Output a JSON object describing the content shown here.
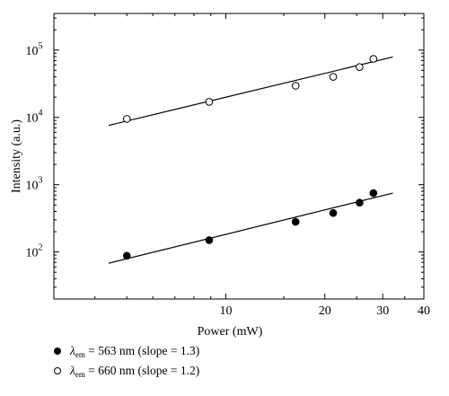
{
  "chart_data": {
    "type": "scatter",
    "xscale": "log",
    "yscale": "log",
    "xlim": [
      3.0,
      40
    ],
    "ylim": [
      20,
      350000
    ],
    "xlabel": "Power (mW)",
    "ylabel": "Intensity (a.u.)",
    "xticks": [
      {
        "value": 10,
        "label": "10"
      },
      {
        "value": 20,
        "label": "20"
      },
      {
        "value": 30,
        "label": "30"
      },
      {
        "value": 40,
        "label": "40"
      }
    ],
    "yticks": [
      {
        "value": 100,
        "base": "10",
        "exp": "2"
      },
      {
        "value": 1000,
        "base": "10",
        "exp": "3"
      },
      {
        "value": 10000,
        "base": "10",
        "exp": "4"
      },
      {
        "value": 100000,
        "base": "10",
        "exp": "5"
      }
    ],
    "series": [
      {
        "name": "λem = 563 nm (slope = 1.3)",
        "marker": "filled-circle",
        "points": [
          {
            "x": 5.0,
            "y": 88
          },
          {
            "x": 8.9,
            "y": 150
          },
          {
            "x": 16.3,
            "y": 280
          },
          {
            "x": 21.2,
            "y": 380
          },
          {
            "x": 25.5,
            "y": 540
          },
          {
            "x": 28.1,
            "y": 750
          }
        ],
        "fit": {
          "x": [
            4.4,
            32.2
          ],
          "y": [
            68,
            750
          ]
        }
      },
      {
        "name": "λem = 660 nm (slope = 1.2)",
        "marker": "open-circle",
        "points": [
          {
            "x": 5.0,
            "y": 9500
          },
          {
            "x": 8.9,
            "y": 17000
          },
          {
            "x": 16.3,
            "y": 29500
          },
          {
            "x": 21.2,
            "y": 40000
          },
          {
            "x": 25.5,
            "y": 56000
          },
          {
            "x": 28.1,
            "y": 74000
          }
        ],
        "fit": {
          "x": [
            4.4,
            32.2
          ],
          "y": [
            7600,
            79000
          ]
        }
      }
    ]
  },
  "legend": {
    "entries": [
      {
        "symbol": "λ",
        "sub": "em",
        "text": " = 563 nm (slope = 1.3)"
      },
      {
        "symbol": "λ",
        "sub": "em",
        "text": " = 660 nm (slope = 1.2)"
      }
    ]
  }
}
